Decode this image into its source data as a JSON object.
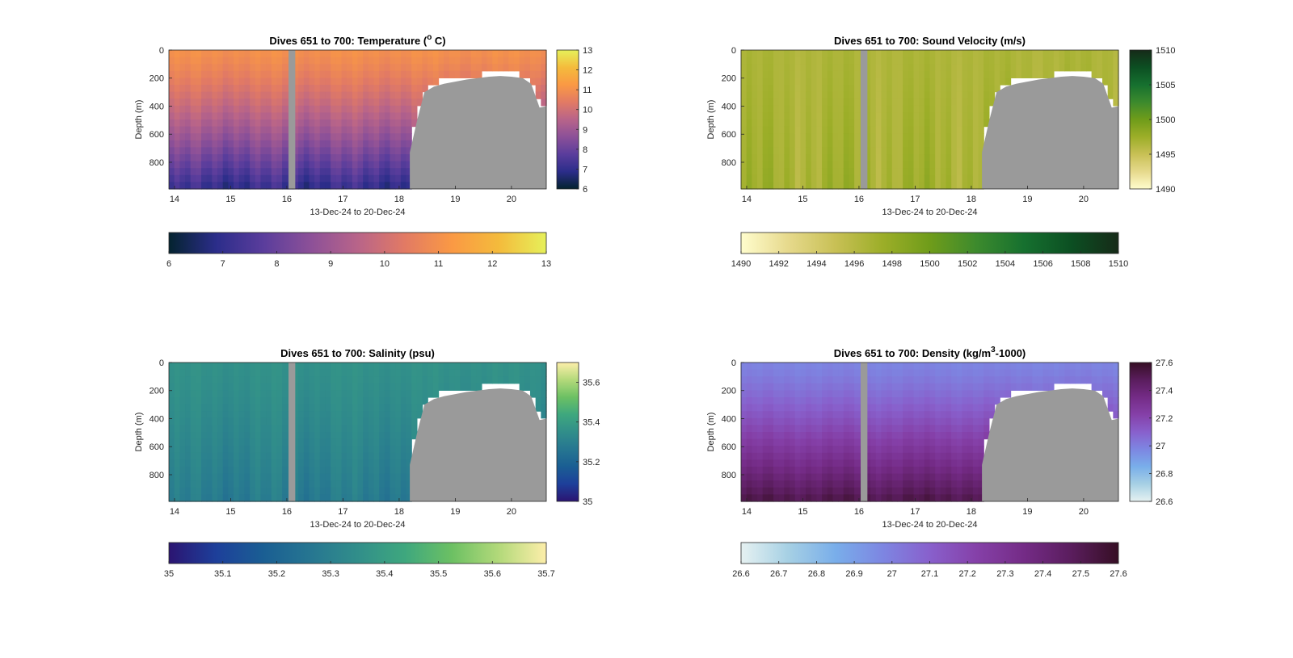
{
  "colormaps": {
    "thermal": [
      "#04232f",
      "#2b2d8a",
      "#5a3d9c",
      "#8c5098",
      "#b86489",
      "#e27a64",
      "#fa9944",
      "#f4bb3c",
      "#e6f05a"
    ],
    "speed": [
      "#fffdcd",
      "#e6d98c",
      "#c8c055",
      "#9cae28",
      "#6f9c1a",
      "#3c8a2d",
      "#16702f",
      "#0c4f22",
      "#162a18"
    ],
    "haline": [
      "#2b1471",
      "#1d3f9a",
      "#1a5e93",
      "#267691",
      "#318e8a",
      "#3ea77e",
      "#6cc063",
      "#b3d97a",
      "#fdeeaa"
    ],
    "dense": [
      "#e6f1f1",
      "#a6d0e4",
      "#79aeea",
      "#7d86e2",
      "#8860cc",
      "#8540a8",
      "#742b86",
      "#5a1d5d",
      "#360e24"
    ]
  },
  "no_data_color": "#9a9a9a",
  "chart_data": [
    {
      "type": "heatmap",
      "id": "temperature",
      "title": "Dives 651 to 700: Temperature (",
      "title_sup": "o",
      "title_tail": " C)",
      "xlabel": "13-Dec-24 to 20-Dec-24",
      "ylabel": "Depth (m)",
      "xlim": [
        13.9,
        20.62
      ],
      "ylim": [
        0,
        990
      ],
      "y_reversed": true,
      "x_ticks": [
        14,
        15,
        16,
        17,
        18,
        19,
        20
      ],
      "y_ticks": [
        0,
        200,
        400,
        600,
        800
      ],
      "gap_day": [
        16.03,
        16.15
      ],
      "bathy_day": [
        18.19,
        18.32,
        18.45,
        18.62,
        18.8,
        19.0,
        19.2,
        19.4,
        19.6,
        19.8,
        20.0,
        20.2,
        20.35,
        20.5,
        20.62
      ],
      "bathy_depth": [
        730,
        500,
        300,
        260,
        240,
        225,
        210,
        200,
        190,
        185,
        190,
        200,
        240,
        410,
        400
      ],
      "value_surface": 11.0,
      "value_bottom": 7.0,
      "variation": 0.5,
      "colormap": "thermal",
      "clim": [
        6,
        13
      ],
      "side_cbar_ticks": [
        6,
        7,
        8,
        9,
        10,
        11,
        12,
        13
      ],
      "bottom_cbar_ticks": [
        6,
        7,
        8,
        9,
        10,
        11,
        12,
        13
      ]
    },
    {
      "type": "heatmap",
      "id": "sound-velocity",
      "title": "Dives 651 to 700: Sound Velocity (m/s)",
      "xlabel": "13-Dec-24 to 20-Dec-24",
      "ylabel": "Depth (m)",
      "xlim": [
        13.9,
        20.62
      ],
      "ylim": [
        0,
        990
      ],
      "y_reversed": true,
      "x_ticks": [
        14,
        15,
        16,
        17,
        18,
        19,
        20
      ],
      "y_ticks": [
        0,
        200,
        400,
        600,
        800
      ],
      "gap_day": [
        16.03,
        16.15
      ],
      "bathy_day": [
        18.19,
        18.32,
        18.45,
        18.62,
        18.8,
        19.0,
        19.2,
        19.4,
        19.6,
        19.8,
        20.0,
        20.2,
        20.35,
        20.5,
        20.62
      ],
      "bathy_depth": [
        730,
        500,
        300,
        260,
        240,
        225,
        210,
        200,
        190,
        185,
        190,
        200,
        240,
        410,
        400
      ],
      "value_surface": 1496.5,
      "value_bottom": 1497.0,
      "variation": 1.5,
      "colormap": "speed",
      "clim": [
        1490,
        1510
      ],
      "side_cbar_ticks": [
        1490,
        1495,
        1500,
        1505,
        1510
      ],
      "bottom_cbar_ticks": [
        1490,
        1492,
        1494,
        1496,
        1498,
        1500,
        1502,
        1504,
        1506,
        1508,
        1510
      ]
    },
    {
      "type": "heatmap",
      "id": "salinity",
      "title": "Dives 651 to 700: Salinity (psu)",
      "xlabel": "13-Dec-24 to 20-Dec-24",
      "ylabel": "Depth (m)",
      "xlim": [
        13.9,
        20.62
      ],
      "ylim": [
        0,
        990
      ],
      "y_reversed": true,
      "x_ticks": [
        14,
        15,
        16,
        17,
        18,
        19,
        20
      ],
      "y_ticks": [
        0,
        200,
        400,
        600,
        800
      ],
      "gap_day": [
        16.03,
        16.15
      ],
      "bathy_day": [
        18.19,
        18.32,
        18.45,
        18.62,
        18.8,
        19.0,
        19.2,
        19.4,
        19.6,
        19.8,
        20.0,
        20.2,
        20.35,
        20.5,
        20.62
      ],
      "bathy_depth": [
        730,
        500,
        300,
        260,
        240,
        225,
        210,
        200,
        190,
        185,
        190,
        200,
        240,
        410,
        400
      ],
      "value_surface": 35.36,
      "value_bottom": 35.28,
      "variation": 0.04,
      "colormap": "haline",
      "clim": [
        35,
        35.7
      ],
      "side_cbar_ticks": [
        35,
        35.2,
        35.4,
        35.6
      ],
      "bottom_cbar_ticks": [
        35,
        35.1,
        35.2,
        35.3,
        35.4,
        35.5,
        35.6,
        35.7
      ]
    },
    {
      "type": "heatmap",
      "id": "density",
      "title": "Dives 651 to 700: Density (kg/m",
      "title_sup": "3",
      "title_tail": "-1000)",
      "xlabel": "13-Dec-24 to 20-Dec-24",
      "ylabel": "Depth (m)",
      "xlim": [
        13.9,
        20.62
      ],
      "ylim": [
        0,
        990
      ],
      "y_reversed": true,
      "x_ticks": [
        14,
        15,
        16,
        17,
        18,
        19,
        20
      ],
      "y_ticks": [
        0,
        200,
        400,
        600,
        800
      ],
      "gap_day": [
        16.03,
        16.15
      ],
      "bathy_day": [
        18.19,
        18.32,
        18.45,
        18.62,
        18.8,
        19.0,
        19.2,
        19.4,
        19.6,
        19.8,
        20.0,
        20.2,
        20.35,
        20.5,
        20.62
      ],
      "bathy_depth": [
        730,
        500,
        300,
        260,
        240,
        225,
        210,
        200,
        190,
        185,
        190,
        200,
        240,
        410,
        400
      ],
      "value_surface": 26.98,
      "value_bottom": 27.52,
      "variation": 0.04,
      "colormap": "dense",
      "clim": [
        26.6,
        27.6
      ],
      "side_cbar_ticks": [
        26.6,
        26.8,
        27,
        27.2,
        27.4,
        27.6
      ],
      "bottom_cbar_ticks": [
        26.6,
        26.7,
        26.8,
        26.9,
        27,
        27.1,
        27.2,
        27.3,
        27.4,
        27.5,
        27.6
      ]
    }
  ]
}
